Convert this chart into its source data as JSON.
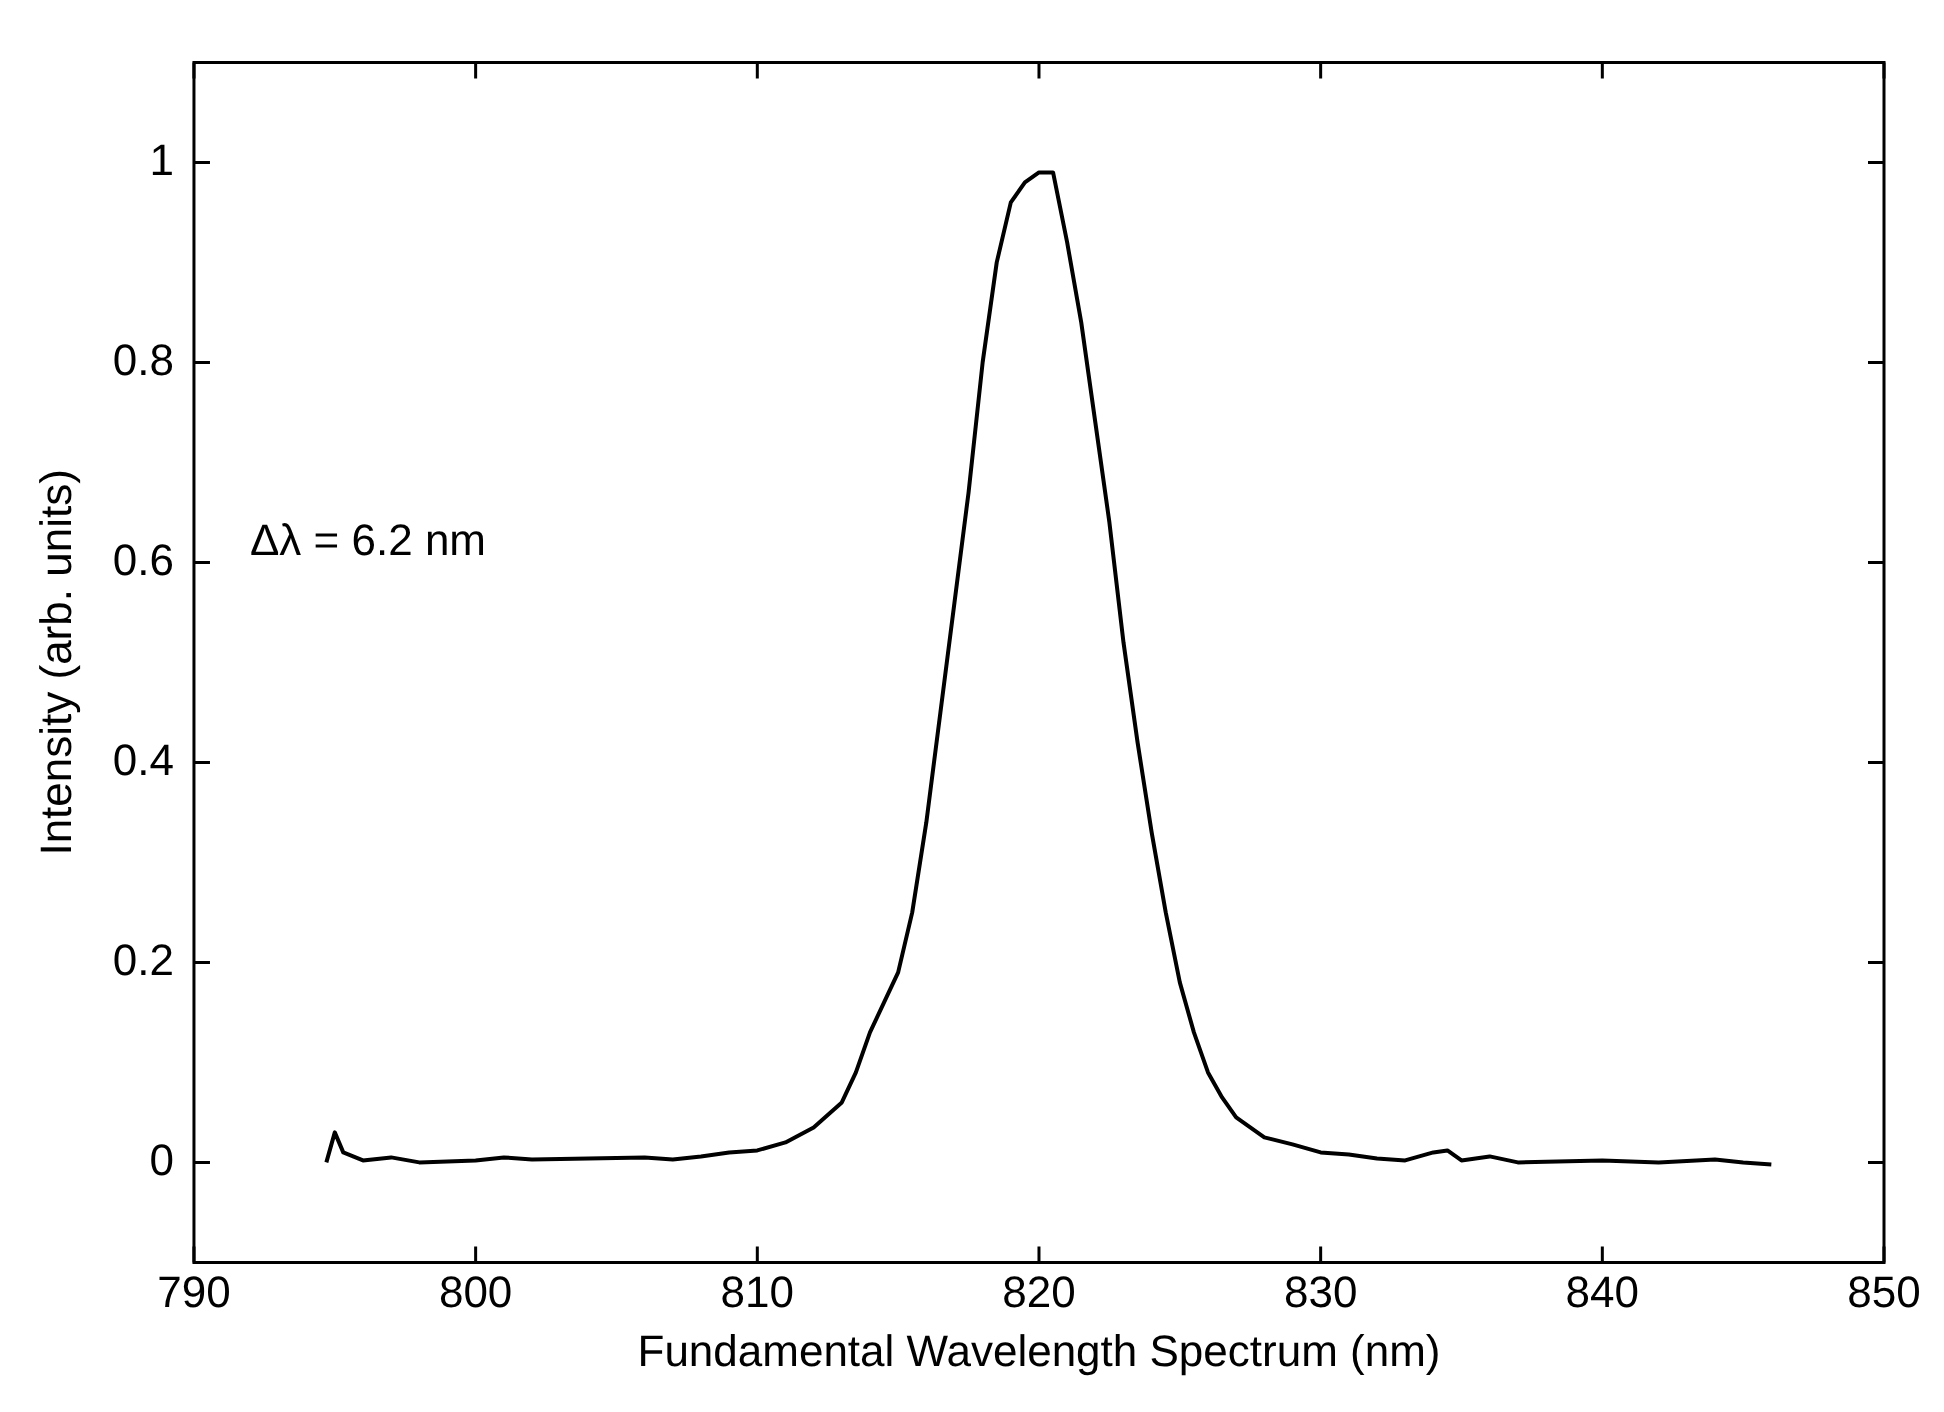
{
  "chart_data": {
    "type": "line",
    "xlabel": "Fundamental Wavelength Spectrum (nm)",
    "ylabel": "Intensity (arb. units)",
    "annotations": [
      "Δλ = 6.2 nm"
    ],
    "xlim": [
      790,
      850
    ],
    "xticks": [
      790,
      800,
      810,
      820,
      830,
      840,
      850
    ],
    "ylim": [
      -0.1,
      1.1
    ],
    "yticks": [
      0,
      0.2,
      0.4,
      0.6,
      0.8,
      1
    ],
    "marker": "none",
    "line_style": "solid",
    "series": [
      {
        "color": "#000000",
        "x": [
          794.7,
          795,
          795.3,
          796,
          797,
          798,
          800,
          801,
          802,
          804,
          806,
          807,
          808,
          809,
          810,
          811,
          812,
          813,
          813.5,
          814,
          814.5,
          815,
          815.5,
          816,
          816.5,
          817,
          817.5,
          818,
          818.5,
          819,
          819.5,
          820,
          820.5,
          821,
          821.5,
          822,
          822.5,
          823,
          823.5,
          824,
          824.5,
          825,
          825.5,
          826,
          826.5,
          827,
          828,
          829,
          830,
          831,
          832,
          833,
          834,
          834.5,
          835,
          836,
          837,
          840,
          842,
          844,
          845,
          846
        ],
        "values": [
          0,
          0.03,
          0.01,
          0.002,
          0.005,
          0,
          0.002,
          0.005,
          0.003,
          0.004,
          0.005,
          0.003,
          0.006,
          0.01,
          0.012,
          0.02,
          0.035,
          0.06,
          0.09,
          0.13,
          0.16,
          0.19,
          0.25,
          0.34,
          0.45,
          0.56,
          0.67,
          0.8,
          0.9,
          0.96,
          0.98,
          0.99,
          0.99,
          0.92,
          0.84,
          0.74,
          0.64,
          0.52,
          0.42,
          0.33,
          0.25,
          0.18,
          0.13,
          0.09,
          0.065,
          0.045,
          0.025,
          0.018,
          0.01,
          0.008,
          0.004,
          0.002,
          0.01,
          0.012,
          0.002,
          0.006,
          0,
          0.002,
          0,
          0.003,
          0,
          -0.002
        ]
      }
    ]
  }
}
